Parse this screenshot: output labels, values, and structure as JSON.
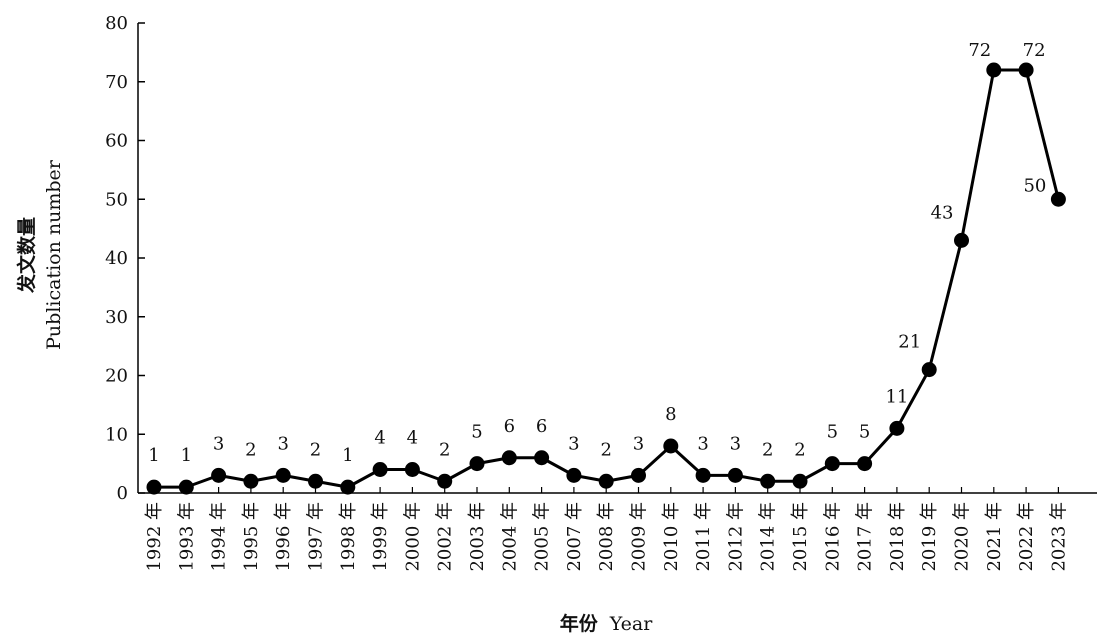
{
  "colors": {
    "line": "#000000",
    "marker": "#000000",
    "axis": "#000000",
    "text": "#111111"
  },
  "chart_data": {
    "type": "line",
    "categories": [
      "1992 年",
      "1993 年",
      "1994 年",
      "1995 年",
      "1996 年",
      "1997 年",
      "1998 年",
      "1999 年",
      "2000 年",
      "2002 年",
      "2003 年",
      "2004 年",
      "2005 年",
      "2007 年",
      "2008 年",
      "2009 年",
      "2010 年",
      "2011 年",
      "2012 年",
      "2014 年",
      "2015 年",
      "2016 年",
      "2017 年",
      "2018 年",
      "2019 年",
      "2020 年",
      "2021 年",
      "2022 年",
      "2023 年"
    ],
    "values": [
      1,
      1,
      3,
      2,
      3,
      2,
      1,
      4,
      4,
      2,
      5,
      6,
      6,
      3,
      2,
      3,
      8,
      3,
      3,
      2,
      2,
      5,
      5,
      11,
      21,
      43,
      72,
      72,
      50
    ],
    "title": "",
    "xlabel_cn": "年份",
    "xlabel_en": "Year",
    "ylabel_cn": "发文数量",
    "ylabel_en": "Publication number",
    "ylim": [
      0,
      80
    ],
    "yticks": [
      0,
      10,
      20,
      30,
      40,
      50,
      60,
      70,
      80
    ],
    "grid": false,
    "legend": "none",
    "data_labels": true
  }
}
